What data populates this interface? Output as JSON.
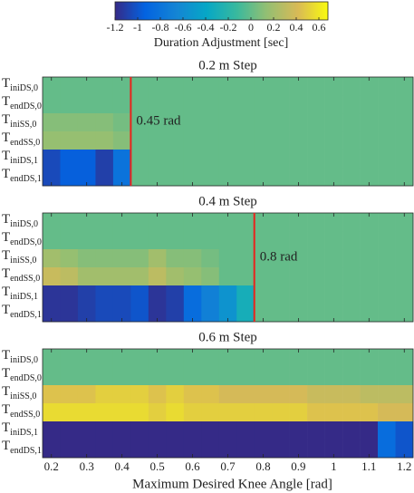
{
  "colorbar": {
    "label": "Duration Adjustment [sec]",
    "colormap": "parula",
    "lim": [
      -1.2,
      0.68
    ],
    "ticks": [
      -1.2,
      -1,
      -0.8,
      -0.6,
      -0.4,
      -0.2,
      0,
      0.2,
      0.4,
      0.6
    ]
  },
  "chart_data": [
    {
      "type": "heatmap",
      "title": "0.2 m Step",
      "row_symbol": "T",
      "rows": [
        "iniDS,0",
        "endDS,0",
        "iniSS,0",
        "endSS,0",
        "iniDS,1",
        "endDS,1"
      ],
      "x": [
        0.2,
        0.25,
        0.3,
        0.35,
        0.4,
        0.45,
        0.5,
        0.55,
        0.6,
        0.65,
        0.7,
        0.75,
        0.8,
        0.85,
        0.9,
        0.95,
        1,
        1.05,
        1.1,
        1.15,
        1.2
      ],
      "xlim": [
        0.175,
        1.225
      ],
      "xticks": [
        0.2,
        0.3,
        0.4,
        0.5,
        0.6,
        0.7,
        0.8,
        0.9,
        1,
        1.1,
        1.2
      ],
      "annotation": {
        "text": "0.45 rad",
        "x": 0.425,
        "color": "#e8231c"
      },
      "values": [
        [
          0,
          0,
          0,
          0,
          0,
          0,
          0,
          0,
          0,
          0,
          0,
          0,
          0,
          0,
          0,
          0,
          0,
          0,
          0,
          0,
          0
        ],
        [
          0,
          0,
          0,
          0,
          0,
          0,
          0,
          0,
          0,
          0,
          0,
          0,
          0,
          0,
          0,
          0,
          0,
          0,
          0,
          0,
          0
        ],
        [
          0.1,
          0.1,
          0.1,
          0.1,
          0.05,
          0,
          0,
          0,
          0,
          0,
          0,
          0,
          0,
          0,
          0,
          0,
          0,
          0,
          0,
          0,
          0
        ],
        [
          0.15,
          0.15,
          0.15,
          0.15,
          0.1,
          0,
          0,
          0,
          0,
          0,
          0,
          0,
          0,
          0,
          0,
          0,
          0,
          0,
          0,
          0,
          0
        ],
        [
          -1.05,
          -0.95,
          -0.95,
          -1.1,
          -0.8,
          0,
          0,
          0,
          0,
          0,
          0,
          0,
          0,
          0,
          0,
          0,
          0,
          0,
          0,
          0,
          0
        ],
        [
          -1.05,
          -0.95,
          -0.95,
          -1.1,
          -0.8,
          0,
          0,
          0,
          0,
          0,
          0,
          0,
          0,
          0,
          0,
          0,
          0,
          0,
          0,
          0,
          0
        ]
      ]
    },
    {
      "type": "heatmap",
      "title": "0.4 m Step",
      "row_symbol": "T",
      "rows": [
        "iniDS,0",
        "endDS,0",
        "iniSS,0",
        "endSS,0",
        "iniDS,1",
        "endDS,1"
      ],
      "x": [
        0.2,
        0.25,
        0.3,
        0.35,
        0.4,
        0.45,
        0.5,
        0.55,
        0.6,
        0.65,
        0.7,
        0.75,
        0.8,
        0.85,
        0.9,
        0.95,
        1,
        1.05,
        1.1,
        1.15,
        1.2
      ],
      "xlim": [
        0.175,
        1.225
      ],
      "xticks": [
        0.2,
        0.3,
        0.4,
        0.5,
        0.6,
        0.7,
        0.8,
        0.9,
        1,
        1.1,
        1.2
      ],
      "annotation": {
        "text": "0.8 rad",
        "x": 0.775,
        "color": "#e8231c"
      },
      "values": [
        [
          0,
          0,
          0,
          0,
          0,
          0,
          0,
          0,
          0,
          0,
          0,
          0,
          0,
          0,
          0,
          0,
          0,
          0,
          0,
          0,
          0
        ],
        [
          0,
          0,
          0,
          0,
          0,
          0,
          0,
          0,
          0,
          0,
          0,
          0,
          0,
          0,
          0,
          0,
          0,
          0,
          0,
          0,
          0
        ],
        [
          0.2,
          0.15,
          0.1,
          0.1,
          0.1,
          0.1,
          0.2,
          0.1,
          0.1,
          0.05,
          0,
          0,
          0,
          0,
          0,
          0,
          0,
          0,
          0,
          0,
          0
        ],
        [
          0.35,
          0.3,
          0.2,
          0.2,
          0.2,
          0.2,
          0.3,
          0.2,
          0.15,
          0.1,
          0,
          0,
          0,
          0,
          0,
          0,
          0,
          0,
          0,
          0,
          0
        ],
        [
          -1.15,
          -1.15,
          -1.1,
          -1.05,
          -1.05,
          -1,
          -1.15,
          -1.1,
          -0.85,
          -0.7,
          -0.55,
          -0.3,
          0,
          0,
          0,
          0,
          0,
          0,
          0,
          0,
          0
        ],
        [
          -1.15,
          -1.15,
          -1.1,
          -1.05,
          -1.05,
          -1,
          -1.15,
          -1.1,
          -0.85,
          -0.7,
          -0.55,
          -0.3,
          0,
          0,
          0,
          0,
          0,
          0,
          0,
          0,
          0
        ]
      ]
    },
    {
      "type": "heatmap",
      "title": "0.6 m Step",
      "row_symbol": "T",
      "rows": [
        "iniDS,0",
        "endDS,0",
        "iniSS,0",
        "endSS,0",
        "iniDS,1",
        "endDS,1"
      ],
      "x": [
        0.2,
        0.25,
        0.3,
        0.35,
        0.4,
        0.45,
        0.5,
        0.55,
        0.6,
        0.65,
        0.7,
        0.75,
        0.8,
        0.85,
        0.9,
        0.95,
        1,
        1.05,
        1.1,
        1.15,
        1.2
      ],
      "xlim": [
        0.175,
        1.225
      ],
      "xticks": [
        0.2,
        0.3,
        0.4,
        0.5,
        0.6,
        0.7,
        0.8,
        0.9,
        1,
        1.1,
        1.2
      ],
      "xlabel": "Maximum Desired Knee Angle [rad]",
      "values": [
        [
          0,
          0,
          0,
          0,
          0,
          0,
          0,
          0,
          0,
          0,
          0,
          0,
          0,
          0,
          0,
          0,
          0,
          0,
          0,
          0,
          0
        ],
        [
          0,
          0,
          0,
          0,
          0,
          0,
          0,
          0,
          0,
          0,
          0,
          0,
          0,
          0,
          0,
          0,
          0,
          0,
          0,
          0,
          0
        ],
        [
          0.45,
          0.45,
          0.45,
          0.5,
          0.5,
          0.5,
          0.45,
          0.5,
          0.45,
          0.45,
          0.4,
          0.4,
          0.4,
          0.4,
          0.4,
          0.35,
          0.35,
          0.35,
          0.3,
          0.3,
          0.3
        ],
        [
          0.55,
          0.55,
          0.55,
          0.55,
          0.55,
          0.55,
          0.5,
          0.55,
          0.5,
          0.5,
          0.5,
          0.5,
          0.5,
          0.5,
          0.5,
          0.45,
          0.45,
          0.45,
          0.45,
          0.4,
          0.4
        ],
        [
          -1.2,
          -1.2,
          -1.2,
          -1.2,
          -1.2,
          -1.2,
          -1.2,
          -1.2,
          -1.2,
          -1.2,
          -1.2,
          -1.2,
          -1.2,
          -1.2,
          -1.2,
          -1.2,
          -1.2,
          -1.2,
          -1.2,
          -0.85,
          -1
        ],
        [
          -1.2,
          -1.2,
          -1.2,
          -1.2,
          -1.2,
          -1.2,
          -1.2,
          -1.2,
          -1.2,
          -1.2,
          -1.2,
          -1.2,
          -1.2,
          -1.2,
          -1.2,
          -1.2,
          -1.2,
          -1.2,
          -1.2,
          -0.85,
          -1
        ]
      ]
    }
  ]
}
